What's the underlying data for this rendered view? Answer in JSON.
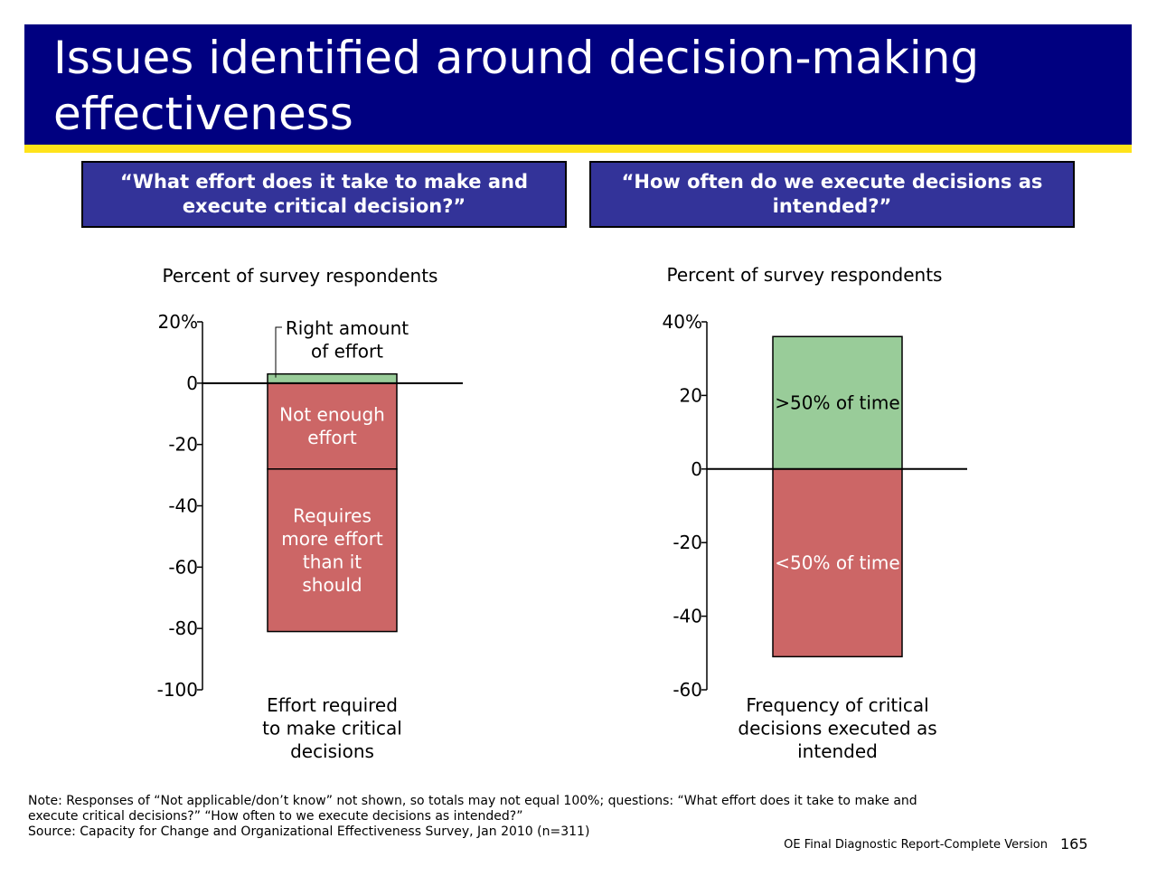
{
  "slide": {
    "title": "Issues identified around decision-making effectiveness",
    "note_line1": "Note: Responses of “Not applicable/don’t know” not shown, so totals may not equal 100%; questions: “What effort does it take to make and execute critical decisions?” “How often to we execute decisions as intended?”",
    "source": "Source: Capacity for Change and Organizational Effectiveness Survey, Jan 2010 (n=311)",
    "footer": "OE Final Diagnostic Report-Complete Version",
    "page_number": "165"
  },
  "colors": {
    "title_bg": "#000080",
    "title_underline": "#FFE31A",
    "question_box": "#333399",
    "positive": "#99CC99",
    "negative": "#CC6666"
  },
  "chart_data": [
    {
      "type": "bar",
      "stacked": true,
      "question": "“What effort does it take to make and execute critical decision?”",
      "ylabel": "Percent of survey respondents",
      "ylim": [
        -100,
        20
      ],
      "yticks": [
        20,
        0,
        -20,
        -40,
        -60,
        -80,
        -100
      ],
      "ytick_labels": [
        "20%",
        "0",
        "-20",
        "-40",
        "-60",
        "-80",
        "-100"
      ],
      "categories": [
        "Effort required to make critical decisions"
      ],
      "series": [
        {
          "name": "Right amount of effort",
          "values": [
            3
          ],
          "color": "#99CC99"
        },
        {
          "name": "Not enough effort",
          "values": [
            -28
          ],
          "color": "#CC6666"
        },
        {
          "name": "Requires more effort than it should",
          "values": [
            -53
          ],
          "color": "#CC6666"
        }
      ]
    },
    {
      "type": "bar",
      "stacked": true,
      "question": "“How often do we execute decisions as intended?”",
      "ylabel": "Percent of survey respondents",
      "ylim": [
        -60,
        40
      ],
      "yticks": [
        40,
        20,
        0,
        -20,
        -40,
        -60
      ],
      "ytick_labels": [
        "40%",
        "20",
        "0",
        "-20",
        "-40",
        "-60"
      ],
      "categories": [
        "Frequency of critical decisions executed as intended"
      ],
      "series": [
        {
          "name": ">50% of time",
          "values": [
            36
          ],
          "color": "#99CC99"
        },
        {
          "name": "<50% of time",
          "values": [
            -51
          ],
          "color": "#CC6666"
        }
      ]
    }
  ]
}
